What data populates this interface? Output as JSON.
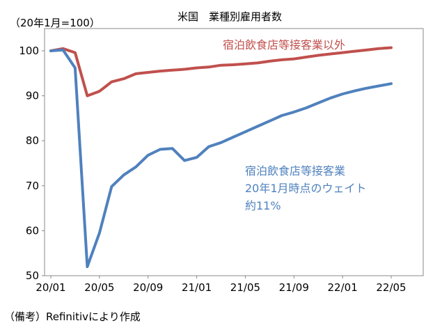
{
  "chart_data": {
    "type": "line",
    "title": "米国　業種別雇用者数",
    "unit_label": "（20年1月=100）",
    "ylim": [
      50,
      105
    ],
    "yticks": [
      50,
      60,
      70,
      80,
      90,
      100
    ],
    "xlim": [
      0,
      29
    ],
    "xticks": [
      {
        "i": 0,
        "label": "20/01"
      },
      {
        "i": 4,
        "label": "20/05"
      },
      {
        "i": 8,
        "label": "20/09"
      },
      {
        "i": 12,
        "label": "21/01"
      },
      {
        "i": 16,
        "label": "21/05"
      },
      {
        "i": 20,
        "label": "21/09"
      },
      {
        "i": 24,
        "label": "22/01"
      },
      {
        "i": 28,
        "label": "22/05"
      }
    ],
    "series": [
      {
        "name": "宿泊飲食店等接客業以外",
        "color": "#C0504D",
        "label_lines": [
          "宿泊飲食店等接客業以外"
        ],
        "values": [
          100,
          100.5,
          99.6,
          90.0,
          91.0,
          93.1,
          93.8,
          94.9,
          95.2,
          95.5,
          95.7,
          95.9,
          96.2,
          96.4,
          96.8,
          96.9,
          97.1,
          97.3,
          97.7,
          98.0,
          98.2,
          98.6,
          99.0,
          99.3,
          99.6,
          99.9,
          100.2,
          100.5,
          100.7
        ]
      },
      {
        "name": "宿泊飲食店等接客業",
        "color": "#4F81BD",
        "label_lines": [
          "宿泊飲食店等接客業",
          "20年1月時点のウェイト",
          "約11%"
        ],
        "values": [
          100,
          100.2,
          96.2,
          52.0,
          59.5,
          69.8,
          72.4,
          74.2,
          76.8,
          78.1,
          78.3,
          75.6,
          76.3,
          78.7,
          79.6,
          80.8,
          82.0,
          83.2,
          84.4,
          85.6,
          86.4,
          87.3,
          88.4,
          89.5,
          90.4,
          91.1,
          91.7,
          92.2,
          92.7
        ]
      }
    ]
  },
  "footer": "（備考）Refinitivにより作成"
}
